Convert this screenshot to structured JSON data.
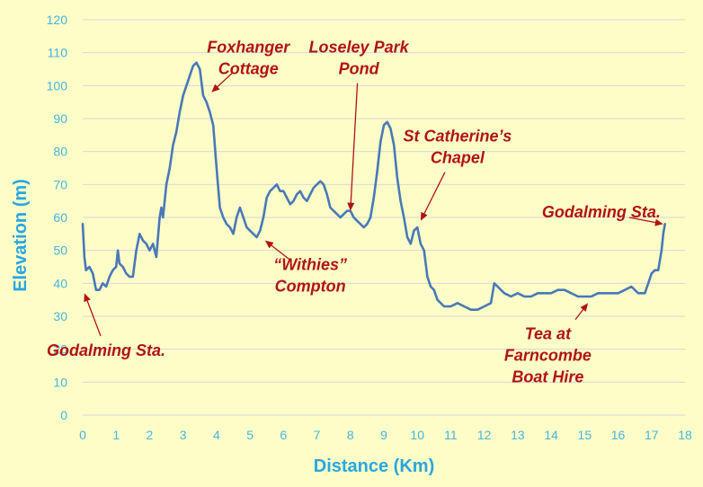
{
  "chart_data": {
    "type": "line",
    "xlabel": "Distance (Km)",
    "ylabel": "Elevation (m)",
    "xlim": [
      0,
      18
    ],
    "ylim": [
      0,
      120
    ],
    "x_ticks": [
      0,
      1,
      2,
      3,
      4,
      5,
      6,
      7,
      8,
      9,
      10,
      11,
      12,
      13,
      14,
      15,
      16,
      17,
      18
    ],
    "y_ticks": [
      0,
      10,
      20,
      30,
      40,
      50,
      60,
      70,
      80,
      90,
      100,
      110,
      120
    ],
    "grid": "horizontal",
    "legend": "none",
    "series": [
      {
        "color": "#4a78b8",
        "points": [
          [
            0,
            58
          ],
          [
            0.05,
            48
          ],
          [
            0.1,
            44
          ],
          [
            0.2,
            45
          ],
          [
            0.3,
            43
          ],
          [
            0.4,
            38
          ],
          [
            0.5,
            38
          ],
          [
            0.6,
            40
          ],
          [
            0.7,
            39
          ],
          [
            0.8,
            42
          ],
          [
            0.9,
            44
          ],
          [
            1.0,
            45
          ],
          [
            1.05,
            50
          ],
          [
            1.1,
            46
          ],
          [
            1.2,
            45
          ],
          [
            1.3,
            43
          ],
          [
            1.4,
            42
          ],
          [
            1.5,
            42
          ],
          [
            1.6,
            50
          ],
          [
            1.7,
            55
          ],
          [
            1.8,
            53
          ],
          [
            1.9,
            52
          ],
          [
            2.0,
            50
          ],
          [
            2.1,
            52
          ],
          [
            2.2,
            48
          ],
          [
            2.3,
            60
          ],
          [
            2.35,
            63
          ],
          [
            2.4,
            60
          ],
          [
            2.5,
            70
          ],
          [
            2.6,
            75
          ],
          [
            2.7,
            82
          ],
          [
            2.8,
            86
          ],
          [
            2.9,
            92
          ],
          [
            3.0,
            97
          ],
          [
            3.1,
            100
          ],
          [
            3.2,
            103
          ],
          [
            3.3,
            106
          ],
          [
            3.4,
            107
          ],
          [
            3.5,
            105
          ],
          [
            3.6,
            97
          ],
          [
            3.7,
            95
          ],
          [
            3.8,
            92
          ],
          [
            3.9,
            88
          ],
          [
            4.0,
            75
          ],
          [
            4.1,
            63
          ],
          [
            4.2,
            60
          ],
          [
            4.3,
            58
          ],
          [
            4.4,
            57
          ],
          [
            4.5,
            55
          ],
          [
            4.6,
            60
          ],
          [
            4.7,
            63
          ],
          [
            4.8,
            60
          ],
          [
            4.9,
            57
          ],
          [
            5.0,
            56
          ],
          [
            5.1,
            55
          ],
          [
            5.2,
            54
          ],
          [
            5.3,
            56
          ],
          [
            5.4,
            60
          ],
          [
            5.5,
            66
          ],
          [
            5.6,
            68
          ],
          [
            5.7,
            69
          ],
          [
            5.8,
            70
          ],
          [
            5.9,
            68
          ],
          [
            6.0,
            68
          ],
          [
            6.1,
            66
          ],
          [
            6.2,
            64
          ],
          [
            6.3,
            65
          ],
          [
            6.4,
            67
          ],
          [
            6.5,
            68
          ],
          [
            6.6,
            66
          ],
          [
            6.7,
            65
          ],
          [
            6.8,
            67
          ],
          [
            6.9,
            69
          ],
          [
            7.0,
            70
          ],
          [
            7.1,
            71
          ],
          [
            7.2,
            70
          ],
          [
            7.3,
            67
          ],
          [
            7.4,
            63
          ],
          [
            7.5,
            62
          ],
          [
            7.6,
            61
          ],
          [
            7.7,
            60
          ],
          [
            7.8,
            61
          ],
          [
            7.9,
            62
          ],
          [
            8.0,
            62
          ],
          [
            8.1,
            60
          ],
          [
            8.2,
            59
          ],
          [
            8.3,
            58
          ],
          [
            8.4,
            57
          ],
          [
            8.5,
            58
          ],
          [
            8.6,
            60
          ],
          [
            8.7,
            66
          ],
          [
            8.8,
            74
          ],
          [
            8.9,
            83
          ],
          [
            9.0,
            88
          ],
          [
            9.1,
            89
          ],
          [
            9.2,
            87
          ],
          [
            9.3,
            82
          ],
          [
            9.4,
            72
          ],
          [
            9.5,
            65
          ],
          [
            9.6,
            60
          ],
          [
            9.7,
            54
          ],
          [
            9.8,
            52
          ],
          [
            9.9,
            56
          ],
          [
            10.0,
            57
          ],
          [
            10.1,
            52
          ],
          [
            10.2,
            50
          ],
          [
            10.3,
            42
          ],
          [
            10.4,
            39
          ],
          [
            10.5,
            38
          ],
          [
            10.6,
            35
          ],
          [
            10.8,
            33
          ],
          [
            11.0,
            33
          ],
          [
            11.2,
            34
          ],
          [
            11.4,
            33
          ],
          [
            11.6,
            32
          ],
          [
            11.8,
            32
          ],
          [
            12.0,
            33
          ],
          [
            12.2,
            34
          ],
          [
            12.3,
            40
          ],
          [
            12.4,
            39
          ],
          [
            12.6,
            37
          ],
          [
            12.8,
            36
          ],
          [
            13.0,
            37
          ],
          [
            13.2,
            36
          ],
          [
            13.4,
            36
          ],
          [
            13.6,
            37
          ],
          [
            13.8,
            37
          ],
          [
            14.0,
            37
          ],
          [
            14.2,
            38
          ],
          [
            14.4,
            38
          ],
          [
            14.6,
            37
          ],
          [
            14.8,
            36
          ],
          [
            15.0,
            36
          ],
          [
            15.2,
            36
          ],
          [
            15.4,
            37
          ],
          [
            15.6,
            37
          ],
          [
            15.8,
            37
          ],
          [
            16.0,
            37
          ],
          [
            16.2,
            38
          ],
          [
            16.4,
            39
          ],
          [
            16.5,
            38
          ],
          [
            16.6,
            37
          ],
          [
            16.8,
            37
          ],
          [
            16.9,
            40
          ],
          [
            17.0,
            43
          ],
          [
            17.1,
            44
          ],
          [
            17.2,
            44
          ],
          [
            17.3,
            50
          ],
          [
            17.35,
            55
          ],
          [
            17.4,
            58
          ]
        ]
      }
    ],
    "annotations": [
      {
        "lines": [
          "Foxhanger",
          "Cottage"
        ],
        "target": [
          3.85,
          98
        ],
        "label_at": [
          4.95,
          110
        ]
      },
      {
        "lines": [
          "Loseley Park",
          "Pond"
        ],
        "target": [
          8.0,
          62
        ],
        "label_at": [
          8.25,
          110
        ]
      },
      {
        "lines": [
          "St Catherine’s",
          "Chapel"
        ],
        "target": [
          10.1,
          59
        ],
        "label_at": [
          11.2,
          83
        ]
      },
      {
        "lines": [
          "Godalming Sta."
        ],
        "target": [
          17.35,
          58
        ],
        "label_at": [
          15.5,
          60
        ]
      },
      {
        "lines": [
          "“Withies”",
          "Compton"
        ],
        "target": [
          5.45,
          53
        ],
        "label_at": [
          6.8,
          44
        ]
      },
      {
        "lines": [
          "Godalming Sta."
        ],
        "target": [
          0.05,
          37
        ],
        "label_at": [
          0.7,
          18
        ]
      },
      {
        "lines": [
          "Tea at",
          "Farncombe",
          "Boat Hire"
        ],
        "target": [
          15.1,
          34
        ],
        "label_at": [
          13.9,
          23
        ]
      }
    ]
  }
}
